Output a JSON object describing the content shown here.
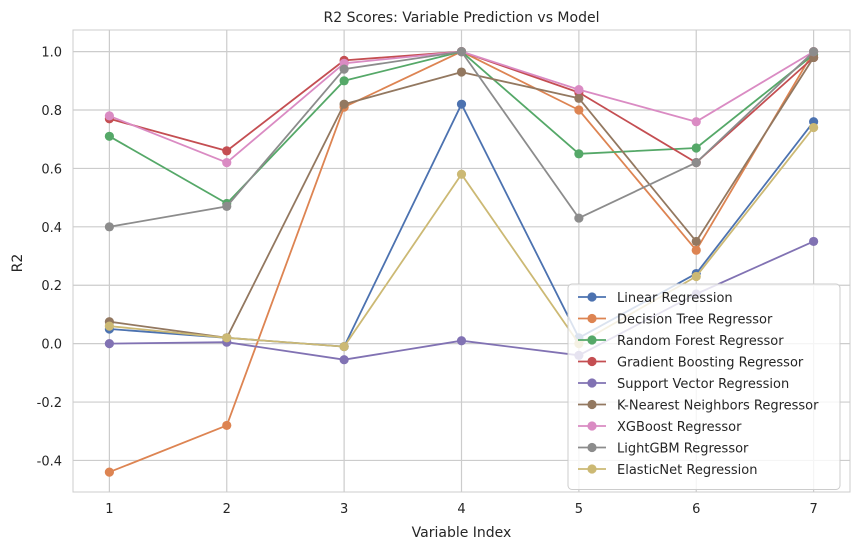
{
  "chart_data": {
    "type": "line",
    "title": "R2 Scores: Variable Prediction vs Model",
    "xlabel": "Variable Index",
    "ylabel": "R2",
    "x": [
      1,
      2,
      3,
      4,
      5,
      6,
      7
    ],
    "xticks": [
      "1",
      "2",
      "3",
      "4",
      "5",
      "6",
      "7"
    ],
    "xlim": [
      0.69,
      7.31
    ],
    "yticks": [
      "-0.4",
      "-0.2",
      "0.0",
      "0.2",
      "0.4",
      "0.6",
      "0.8",
      "1.0"
    ],
    "ytick_values": [
      -0.4,
      -0.2,
      0.0,
      0.2,
      0.4,
      0.6,
      0.8,
      1.0
    ],
    "ylim": [
      -0.508,
      1.074
    ],
    "grid": true,
    "legend_position": "lower-right",
    "background": "#ffffff",
    "grid_color": "#cccccc",
    "series": [
      {
        "name": "Linear Regression",
        "color": "#4c72b0",
        "values": [
          0.05,
          0.02,
          -0.01,
          0.82,
          0.02,
          0.24,
          0.76
        ]
      },
      {
        "name": "Decision Tree Regressor",
        "color": "#dd8452",
        "values": [
          -0.44,
          -0.28,
          0.81,
          1.0,
          0.8,
          0.32,
          1.0
        ]
      },
      {
        "name": "Random Forest Regressor",
        "color": "#55a868",
        "values": [
          0.71,
          0.48,
          0.9,
          1.0,
          0.65,
          0.67,
          0.99
        ]
      },
      {
        "name": "Gradient Boosting Regressor",
        "color": "#c44e52",
        "values": [
          0.77,
          0.66,
          0.97,
          1.0,
          0.86,
          0.62,
          0.98
        ]
      },
      {
        "name": "Support Vector Regression",
        "color": "#8172b3",
        "values": [
          0.0,
          0.005,
          -0.055,
          0.01,
          -0.04,
          0.17,
          0.35
        ]
      },
      {
        "name": "K-Nearest Neighbors Regressor",
        "color": "#937860",
        "values": [
          0.075,
          0.02,
          0.82,
          0.93,
          0.84,
          0.35,
          0.98
        ]
      },
      {
        "name": "XGBoost Regressor",
        "color": "#da8bc3",
        "values": [
          0.78,
          0.62,
          0.96,
          1.0,
          0.87,
          0.76,
          1.0
        ]
      },
      {
        "name": "LightGBM Regressor",
        "color": "#8c8c8c",
        "values": [
          0.4,
          0.47,
          0.94,
          1.0,
          0.43,
          0.62,
          1.0
        ]
      },
      {
        "name": "ElasticNet Regression",
        "color": "#ccb974",
        "values": [
          0.06,
          0.02,
          -0.01,
          0.58,
          0.0,
          0.23,
          0.74
        ]
      }
    ]
  }
}
